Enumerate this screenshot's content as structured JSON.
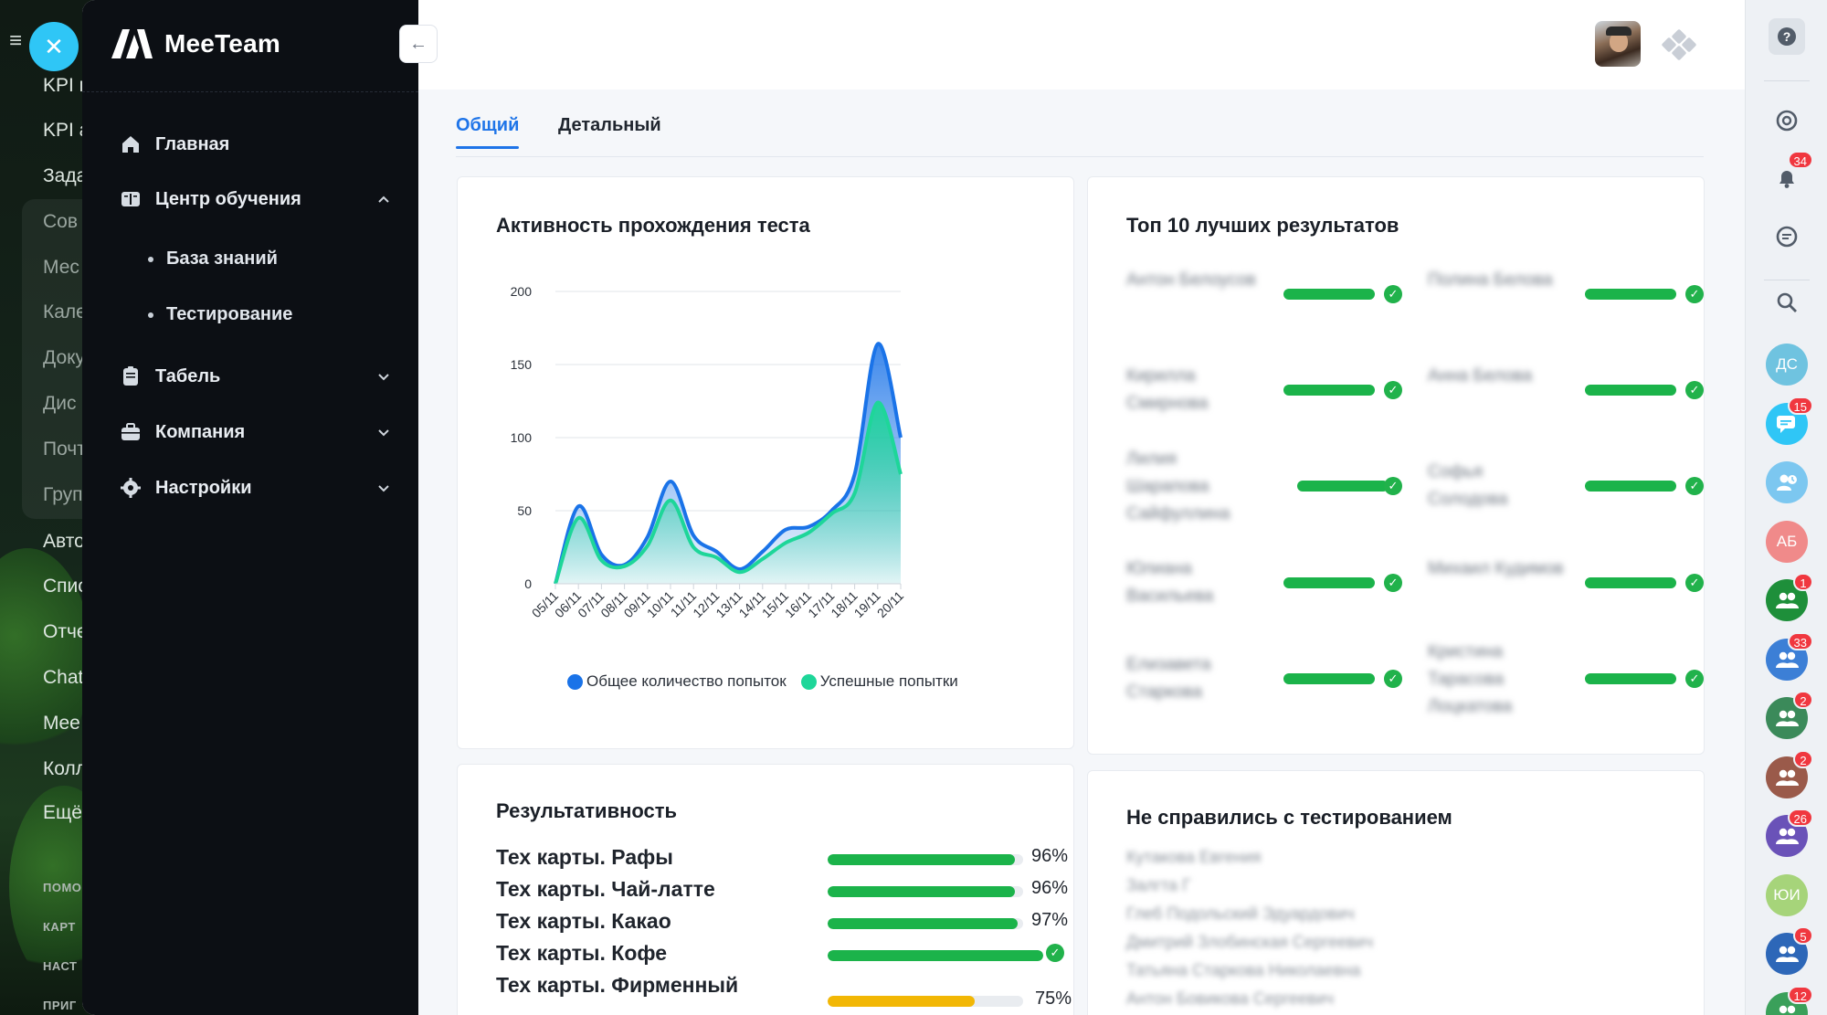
{
  "background_menu": {
    "items": [
      "KPI г",
      "KPI а",
      "Зада",
      "Сов",
      "Мес",
      "Кале",
      "Доку",
      "Дис",
      "Почт",
      "Груп",
      "Авто",
      "Спис",
      "Отче",
      "Chat",
      "Mee",
      "Колл",
      "Ещё"
    ],
    "small": [
      "ПОМО",
      "КАРТ",
      "НАСТ",
      "ПРИГ"
    ]
  },
  "close_button": {
    "icon": "close-icon"
  },
  "brand": {
    "name": "MeeTeam"
  },
  "sidebar": {
    "collapse_icon": "arrow-left-icon",
    "items": [
      {
        "label": "Главная",
        "icon": "home-icon"
      },
      {
        "label": "Центр обучения",
        "icon": "book-icon",
        "expanded": true,
        "children": [
          "База знаний",
          "Тестирование"
        ]
      },
      {
        "label": "Табель",
        "icon": "document-icon"
      },
      {
        "label": "Компания",
        "icon": "briefcase-icon"
      },
      {
        "label": "Настройки",
        "icon": "gear-icon"
      }
    ]
  },
  "tabs": [
    {
      "label": "Общий",
      "active": true
    },
    {
      "label": "Детальный",
      "active": false
    }
  ],
  "activity_card": {
    "title": "Активность прохождения теста"
  },
  "chart_data": {
    "type": "area",
    "title": "Активность прохождения теста",
    "x": [
      "05/11",
      "06/11",
      "07/11",
      "08/11",
      "09/11",
      "10/11",
      "11/11",
      "12/11",
      "13/11",
      "14/11",
      "15/11",
      "16/11",
      "17/11",
      "18/11",
      "19/11",
      "20/11"
    ],
    "ylim": [
      0,
      200
    ],
    "yticks": [
      0,
      50,
      100,
      150,
      200
    ],
    "grid": true,
    "legend": "bottom",
    "series": [
      {
        "name": "Общее количество попыток",
        "color": "#1a73e8",
        "values": [
          0,
          53,
          20,
          13,
          32,
          70,
          33,
          22,
          10,
          22,
          37,
          39,
          50,
          75,
          164,
          100
        ]
      },
      {
        "name": "Успешные попытки",
        "color": "#1ed699",
        "values": [
          0,
          45,
          16,
          12,
          26,
          57,
          25,
          18,
          8,
          17,
          28,
          35,
          48,
          62,
          124,
          75
        ]
      }
    ]
  },
  "top_card": {
    "title": "Топ 10 лучших результатов",
    "entries": [
      {
        "name": "Антон Белоусов"
      },
      {
        "name": "Полина Белова"
      },
      {
        "name": "Кирилла Смирнова"
      },
      {
        "name": "Анна Белова"
      },
      {
        "name": "Лилия Шарапова Сайфуллина"
      },
      {
        "name": "Софья Солодова"
      },
      {
        "name": "Юлиана Васильева"
      },
      {
        "name": "Михаил Кудимов"
      },
      {
        "name": "Елизавета Старкова"
      },
      {
        "name": "Кристина Тарасова Лоцкатова"
      }
    ],
    "success_icon": "check-circle-icon"
  },
  "perf_card": {
    "title": "Результативность",
    "rows": [
      {
        "label": "Тех карты. Рафы",
        "value": 96,
        "pct_text": "96%",
        "color": "#1bb34a"
      },
      {
        "label": "Тех карты. Чай-латте",
        "value": 96,
        "pct_text": "96%",
        "color": "#1bb34a"
      },
      {
        "label": "Тех карты. Какао",
        "value": 97,
        "pct_text": "97%",
        "color": "#1bb34a"
      },
      {
        "label": "Тех карты. Кофе",
        "value": 100,
        "pct_text": "",
        "color": "#1bb34a",
        "complete": true
      },
      {
        "label": "Тех карты. Фирменный",
        "value": 75,
        "pct_text": "75%",
        "color": "#f2b705"
      }
    ]
  },
  "fail_card": {
    "title": "Не справились с тестированием",
    "names": [
      "Кутакова Евгения",
      "Залгта Г",
      "Глеб Подольский Эдуардович",
      "Дмитрий Злобинская Сергеевич",
      "Татьяна Старкова Николаевна",
      "Антон Бовикова Сергеевич"
    ]
  },
  "rail": {
    "help_icon": "help-icon",
    "buttons": [
      {
        "icon": "sync-icon"
      },
      {
        "icon": "bell-icon",
        "badge": "34"
      },
      {
        "icon": "chat-search-icon"
      },
      {
        "icon": "search-icon"
      }
    ],
    "avatars": [
      {
        "initials": "ДС",
        "color": "#6fc3e0",
        "badge": ""
      },
      {
        "initials": "",
        "color": "#2fc6f6",
        "badge": "15",
        "icon": "chat-icon"
      },
      {
        "initials": "",
        "color": "#7cc7f0",
        "badge": "",
        "icon": "user-clock-icon"
      },
      {
        "initials": "АБ",
        "color": "#f08a8a",
        "badge": ""
      },
      {
        "initials": "",
        "color": "#1e8f3a",
        "badge": "1",
        "icon": "group-icon"
      },
      {
        "initials": "",
        "color": "#3c7fd6",
        "badge": "33",
        "icon": "group-icon"
      },
      {
        "initials": "",
        "color": "#3b8a5a",
        "badge": "2",
        "icon": "group-icon"
      },
      {
        "initials": "",
        "color": "#9a5a4a",
        "badge": "2",
        "icon": "group-icon"
      },
      {
        "initials": "",
        "color": "#6a52b8",
        "badge": "26",
        "icon": "group-icon"
      },
      {
        "initials": "ЮИ",
        "color": "#a6d47a",
        "badge": ""
      },
      {
        "initials": "",
        "color": "#2d67b8",
        "badge": "5",
        "icon": "group-icon"
      },
      {
        "initials": "",
        "color": "#3aa05a",
        "badge": "12",
        "icon": "group-icon"
      }
    ]
  }
}
